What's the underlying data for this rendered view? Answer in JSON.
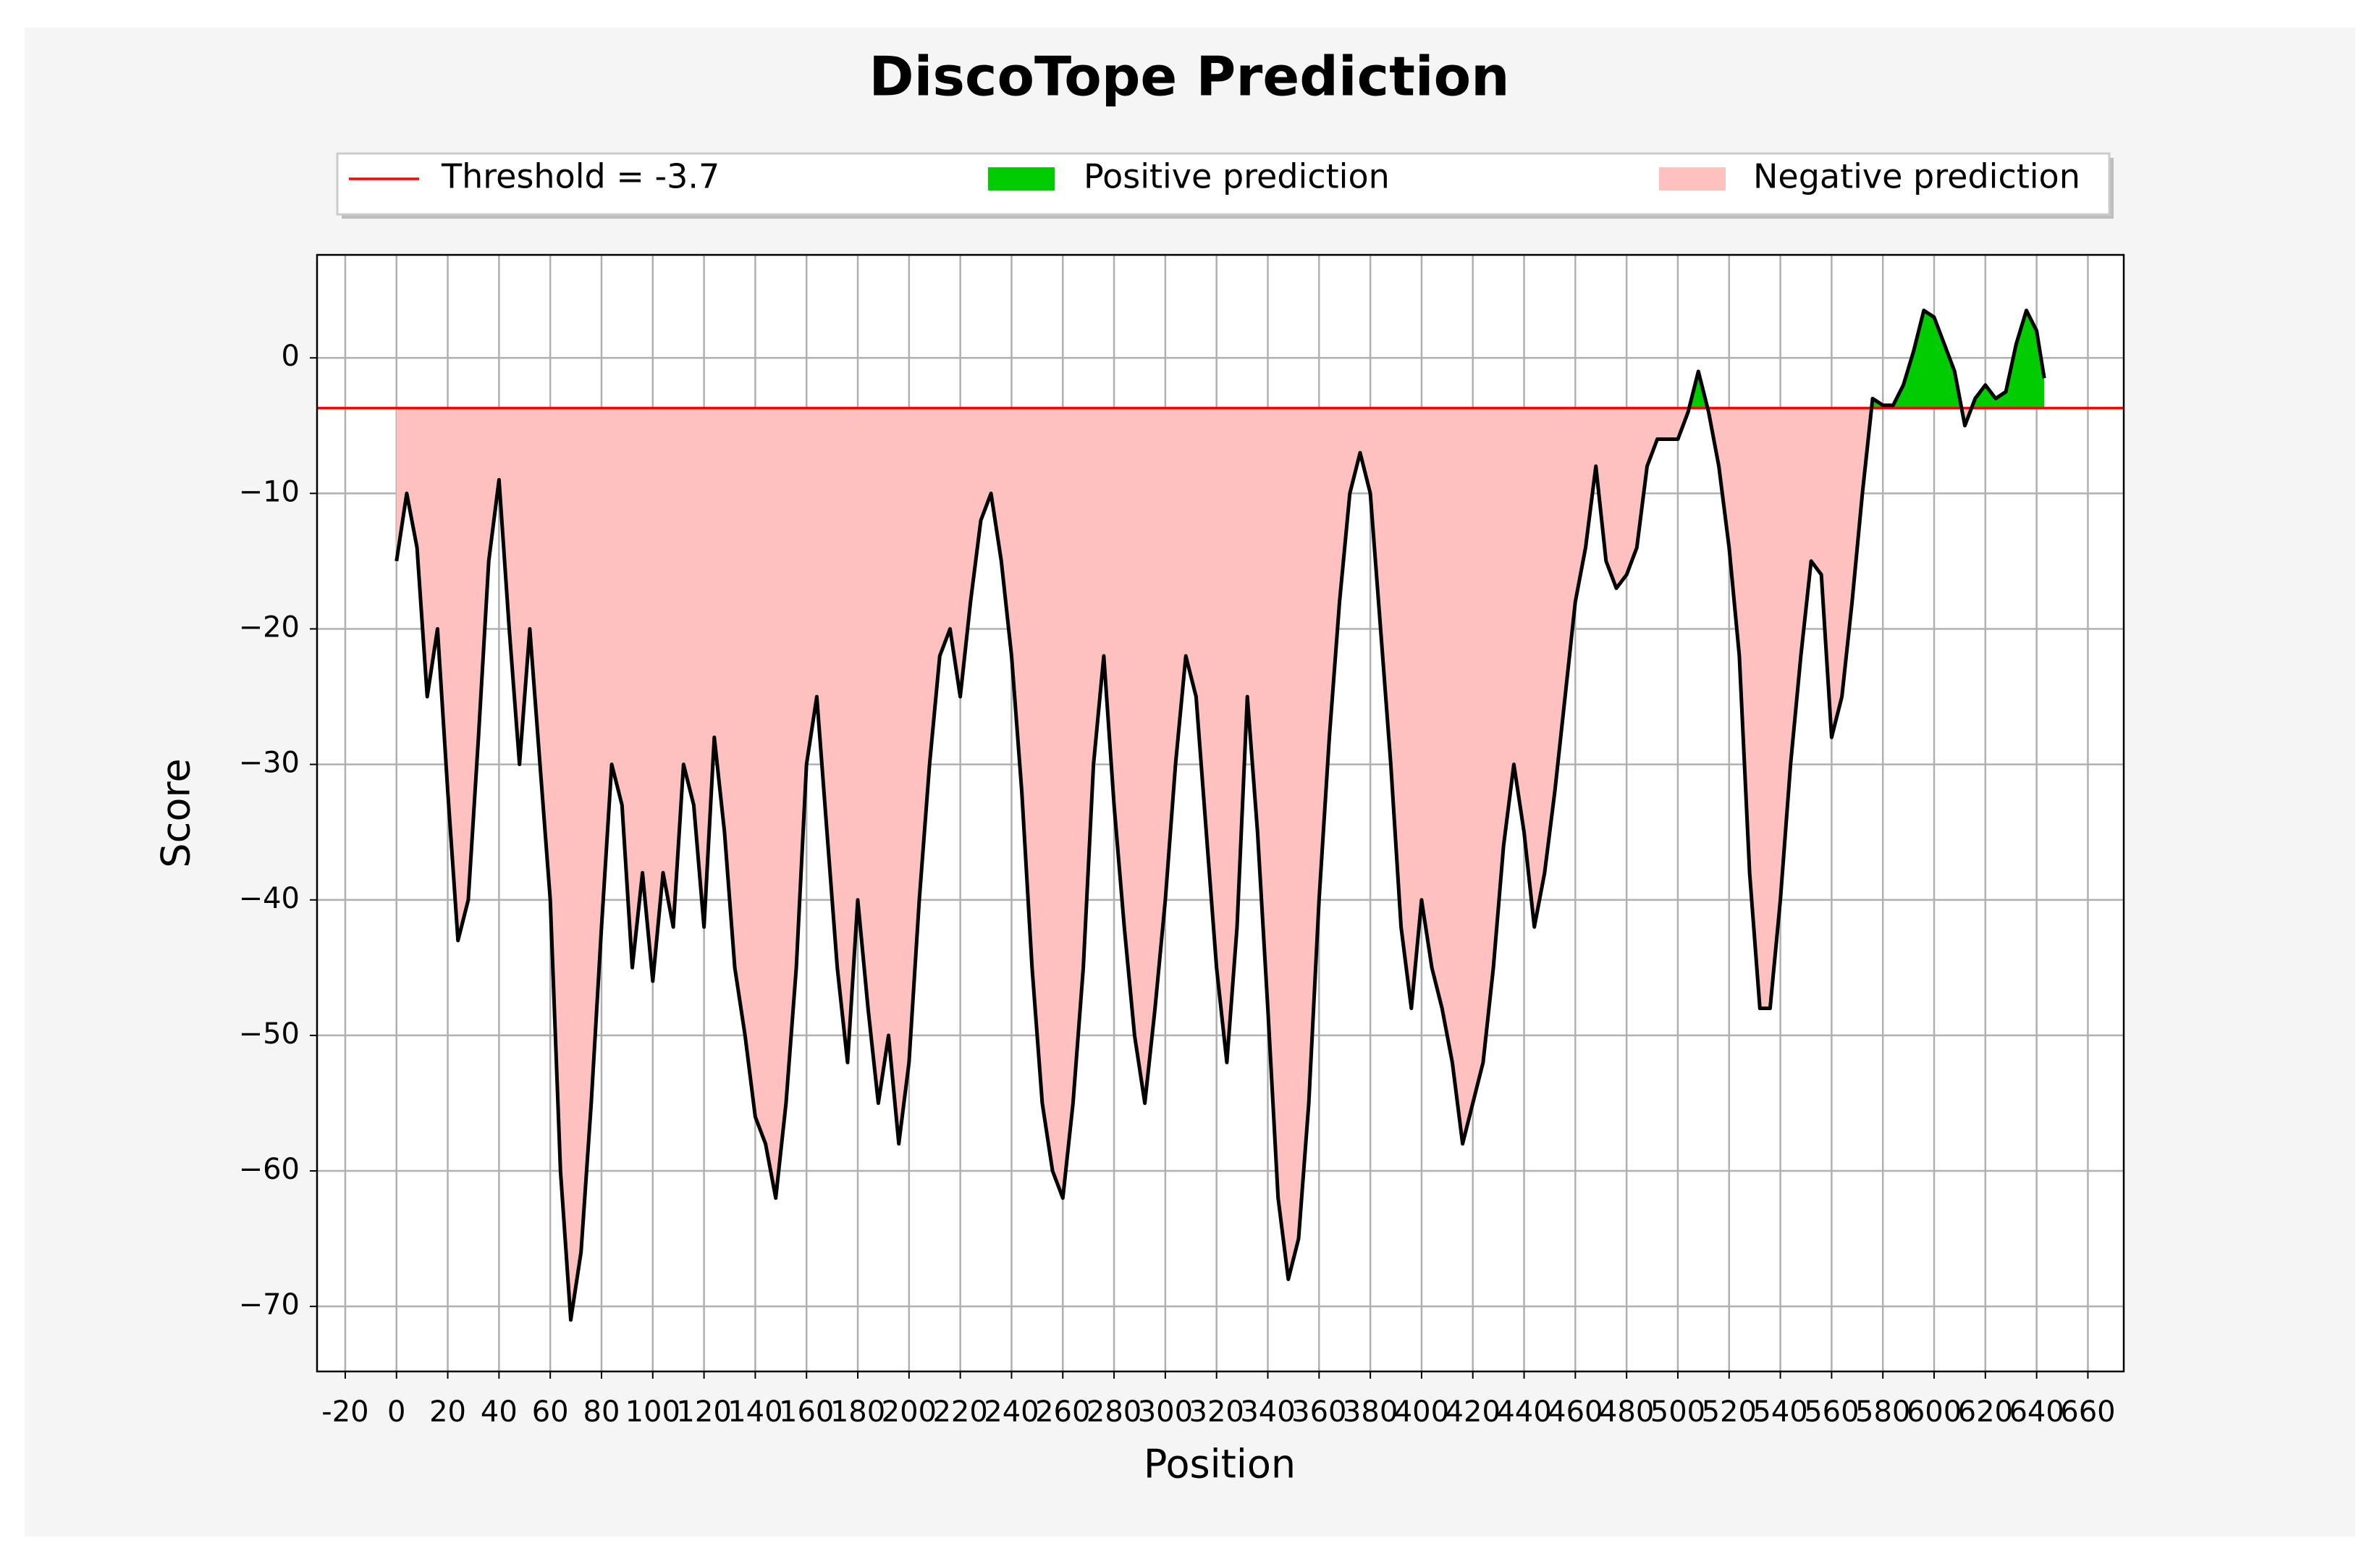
{
  "chart_data": {
    "type": "line",
    "title": "DiscoTope Prediction",
    "xlabel": "Position",
    "ylabel": "Score",
    "threshold": -3.7,
    "threshold_color": "#ff0000",
    "positive_color": "#00cc00",
    "negative_color": "#ffc0c0",
    "legend": [
      "Threshold = -3.7",
      "Positive prediction",
      "Negative prediction"
    ],
    "grid": true,
    "x": [
      0,
      4,
      8,
      12,
      16,
      20,
      24,
      28,
      32,
      36,
      40,
      44,
      48,
      52,
      56,
      60,
      64,
      68,
      72,
      76,
      80,
      84,
      88,
      92,
      96,
      100,
      104,
      108,
      112,
      116,
      120,
      124,
      128,
      132,
      136,
      140,
      144,
      148,
      152,
      156,
      160,
      164,
      168,
      172,
      176,
      180,
      184,
      188,
      192,
      196,
      200,
      204,
      208,
      212,
      216,
      220,
      224,
      228,
      232,
      236,
      240,
      244,
      248,
      252,
      256,
      260,
      264,
      268,
      272,
      276,
      280,
      284,
      288,
      292,
      296,
      300,
      304,
      308,
      312,
      316,
      320,
      324,
      328,
      332,
      336,
      340,
      344,
      348,
      352,
      356,
      360,
      364,
      368,
      372,
      376,
      380,
      384,
      388,
      392,
      396,
      400,
      404,
      408,
      412,
      416,
      420,
      424,
      428,
      432,
      436,
      440,
      444,
      448,
      452,
      456,
      460,
      464,
      468,
      472,
      476,
      480,
      484,
      488,
      492,
      496,
      500,
      504,
      508,
      512,
      516,
      520,
      524,
      528,
      532,
      536,
      540,
      544,
      548,
      552,
      556,
      560,
      564,
      568,
      572,
      576,
      580,
      584,
      588,
      592,
      596,
      600,
      604,
      608,
      612,
      616,
      620,
      624,
      628,
      632,
      636,
      640,
      643
    ],
    "series": [
      {
        "color": "#000000",
        "values": [
          -15,
          -10,
          -14,
          -25,
          -20,
          -32,
          -43,
          -40,
          -28,
          -15,
          -9,
          -20,
          -30,
          -20,
          -30,
          -40,
          -60,
          -71,
          -66,
          -55,
          -42,
          -30,
          -33,
          -45,
          -38,
          -46,
          -38,
          -42,
          -30,
          -33,
          -42,
          -28,
          -35,
          -45,
          -50,
          -56,
          -58,
          -62,
          -55,
          -45,
          -30,
          -25,
          -35,
          -45,
          -52,
          -40,
          -48,
          -55,
          -50,
          -58,
          -52,
          -40,
          -30,
          -22,
          -20,
          -25,
          -18,
          -12,
          -10,
          -15,
          -22,
          -32,
          -45,
          -55,
          -60,
          -62,
          -55,
          -45,
          -30,
          -22,
          -33,
          -42,
          -50,
          -55,
          -48,
          -40,
          -30,
          -22,
          -25,
          -35,
          -45,
          -52,
          -42,
          -25,
          -35,
          -48,
          -62,
          -68,
          -65,
          -55,
          -40,
          -28,
          -18,
          -10,
          -7,
          -10,
          -20,
          -30,
          -42,
          -48,
          -40,
          -45,
          -48,
          -52,
          -58,
          -55,
          -52,
          -45,
          -36,
          -30,
          -35,
          -42,
          -38,
          -32,
          -25,
          -18,
          -14,
          -8,
          -15,
          -17,
          -16,
          -14,
          -8,
          -6,
          -6,
          -6,
          -4,
          -1,
          -4,
          -8,
          -14,
          -22,
          -38,
          -48,
          -48,
          -40,
          -30,
          -22,
          -15,
          -16,
          -28,
          -25,
          -18,
          -10,
          -3,
          -3.5,
          -3.5,
          -2,
          0.5,
          3.5,
          3,
          1,
          -1,
          -5,
          -3,
          -2,
          -3,
          -2.5,
          1,
          3.5,
          2,
          -1.5
        ]
      }
    ],
    "xlim": [
      -31,
      674
    ],
    "ylim": [
      -74.8,
      7.6
    ],
    "xticks": [
      -20,
      0,
      20,
      40,
      60,
      80,
      100,
      120,
      140,
      160,
      180,
      200,
      220,
      240,
      260,
      280,
      300,
      320,
      340,
      360,
      380,
      400,
      420,
      440,
      460,
      480,
      500,
      520,
      540,
      560,
      580,
      600,
      620,
      640,
      660
    ],
    "yticks": [
      {
        "value": -70,
        "label": "−70"
      },
      {
        "value": -60,
        "label": "−60"
      },
      {
        "value": -50,
        "label": "−50"
      },
      {
        "value": -40,
        "label": "−40"
      },
      {
        "value": -30,
        "label": "−30"
      },
      {
        "value": -20,
        "label": "−20"
      },
      {
        "value": -10,
        "label": "−10"
      },
      0
    ]
  }
}
